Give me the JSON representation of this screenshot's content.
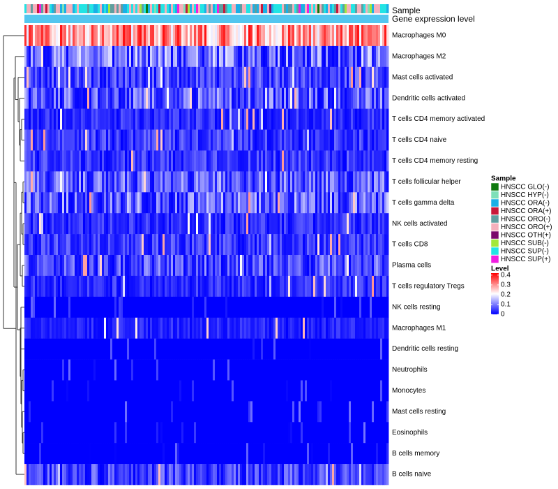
{
  "chart_data": {
    "type": "heatmap",
    "title": "",
    "annotation_rows": [
      "Sample",
      "Gene expression level"
    ],
    "row_labels": [
      "Macrophages M0",
      "Macrophages M2",
      "Mast cells activated",
      "Dendritic cells activated",
      "T cells CD4 memory activated",
      "T cells CD4 naive",
      "T cells CD4 memory resting",
      "T cells follicular helper",
      "T cells gamma delta",
      "NK cells activated",
      "T cells CD8",
      "Plasma cells",
      "T cells regulatory  Tregs",
      "NK cells resting",
      "Macrophages M1",
      "Dendritic cells resting",
      "Neutrophils",
      "Monocytes",
      "Mast cells resting",
      "Eosinophils",
      "B cells memory",
      "B cells naive"
    ],
    "row_levels_typical": [
      0.3,
      0.1,
      0.06,
      0.08,
      0.04,
      0.05,
      0.05,
      0.08,
      0.09,
      0.04,
      0.05,
      0.07,
      0.04,
      0.02,
      0.03,
      0.01,
      0.02,
      0.02,
      0.02,
      0.01,
      0.01,
      0.06
    ],
    "n_samples": 174,
    "sample_groups": [
      {
        "name": "HNSCC GLO(-)",
        "color": "#0f7a0f"
      },
      {
        "name": "HNSCC HYP(-)",
        "color": "#7ee0b8"
      },
      {
        "name": "HNSCC ORA(-)",
        "color": "#1ab0e6"
      },
      {
        "name": "HNSCC ORA(+)",
        "color": "#c8183a"
      },
      {
        "name": "HNSCC ORO(-)",
        "color": "#5f9ea0"
      },
      {
        "name": "HNSCC ORO(+)",
        "color": "#f4b0bc"
      },
      {
        "name": "HNSCC OTH(+)",
        "color": "#7b0a6b"
      },
      {
        "name": "HNSCC SUB(-)",
        "color": "#a4e83a"
      },
      {
        "name": "HNSCC SUP(-)",
        "color": "#22e4e4"
      },
      {
        "name": "HNSCC SUP(+)",
        "color": "#f01ee0"
      }
    ],
    "expression_annotation_color": "#53c6ef",
    "legend": {
      "sample_title": "Sample",
      "level_title": "Level",
      "level_ticks": [
        "0.4",
        "0.3",
        "0.2",
        "0.1",
        "0"
      ],
      "level_range": [
        0,
        0.42
      ],
      "color_low": "#0000ff",
      "color_mid": "#ffffff",
      "color_high": "#ff0000",
      "placement": "right"
    },
    "dendrogram": "rows"
  }
}
